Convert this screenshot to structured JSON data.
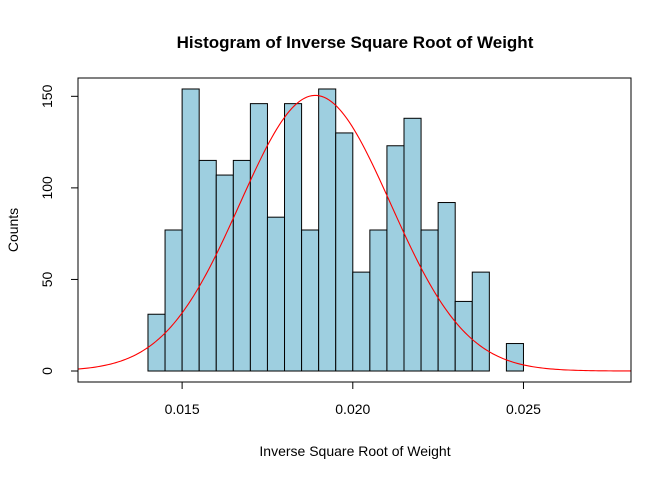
{
  "chart_data": {
    "type": "bar",
    "title": "Histogram of  Inverse Square Root of Weight",
    "xlabel": "Inverse Square Root of Weight",
    "ylabel": "Counts",
    "xlim": [
      0.01195,
      0.02815
    ],
    "ylim": [
      -6,
      160
    ],
    "grid": false,
    "x_ticks": [
      0.015,
      0.02,
      0.025
    ],
    "x_tick_labels": [
      "0.015",
      "0.020",
      "0.025"
    ],
    "y_ticks": [
      0,
      50,
      100,
      150
    ],
    "y_tick_labels": [
      "0",
      "50",
      "100",
      "150"
    ],
    "bins": [
      {
        "start": 0.014,
        "end": 0.0145,
        "count": 31
      },
      {
        "start": 0.0145,
        "end": 0.015,
        "count": 77
      },
      {
        "start": 0.015,
        "end": 0.0155,
        "count": 154
      },
      {
        "start": 0.0155,
        "end": 0.016,
        "count": 115
      },
      {
        "start": 0.016,
        "end": 0.0165,
        "count": 107
      },
      {
        "start": 0.0165,
        "end": 0.017,
        "count": 115
      },
      {
        "start": 0.017,
        "end": 0.0175,
        "count": 146
      },
      {
        "start": 0.0175,
        "end": 0.018,
        "count": 84
      },
      {
        "start": 0.018,
        "end": 0.0185,
        "count": 146
      },
      {
        "start": 0.0185,
        "end": 0.019,
        "count": 77
      },
      {
        "start": 0.019,
        "end": 0.0195,
        "count": 154
      },
      {
        "start": 0.0195,
        "end": 0.02,
        "count": 130
      },
      {
        "start": 0.02,
        "end": 0.0205,
        "count": 54
      },
      {
        "start": 0.0205,
        "end": 0.021,
        "count": 77
      },
      {
        "start": 0.021,
        "end": 0.0215,
        "count": 123
      },
      {
        "start": 0.0215,
        "end": 0.022,
        "count": 138
      },
      {
        "start": 0.022,
        "end": 0.0225,
        "count": 77
      },
      {
        "start": 0.0225,
        "end": 0.023,
        "count": 92
      },
      {
        "start": 0.023,
        "end": 0.0235,
        "count": 38
      },
      {
        "start": 0.0235,
        "end": 0.024,
        "count": 54
      },
      {
        "start": 0.0245,
        "end": 0.025,
        "count": 15
      }
    ],
    "density_curve": {
      "color": "#ff0000",
      "mean": 0.0189,
      "sd": 0.00221,
      "peak": 150.5
    },
    "colors": {
      "bar_fill": "#9ecfe0",
      "bar_stroke": "#000000",
      "curve": "#ff0000"
    }
  }
}
